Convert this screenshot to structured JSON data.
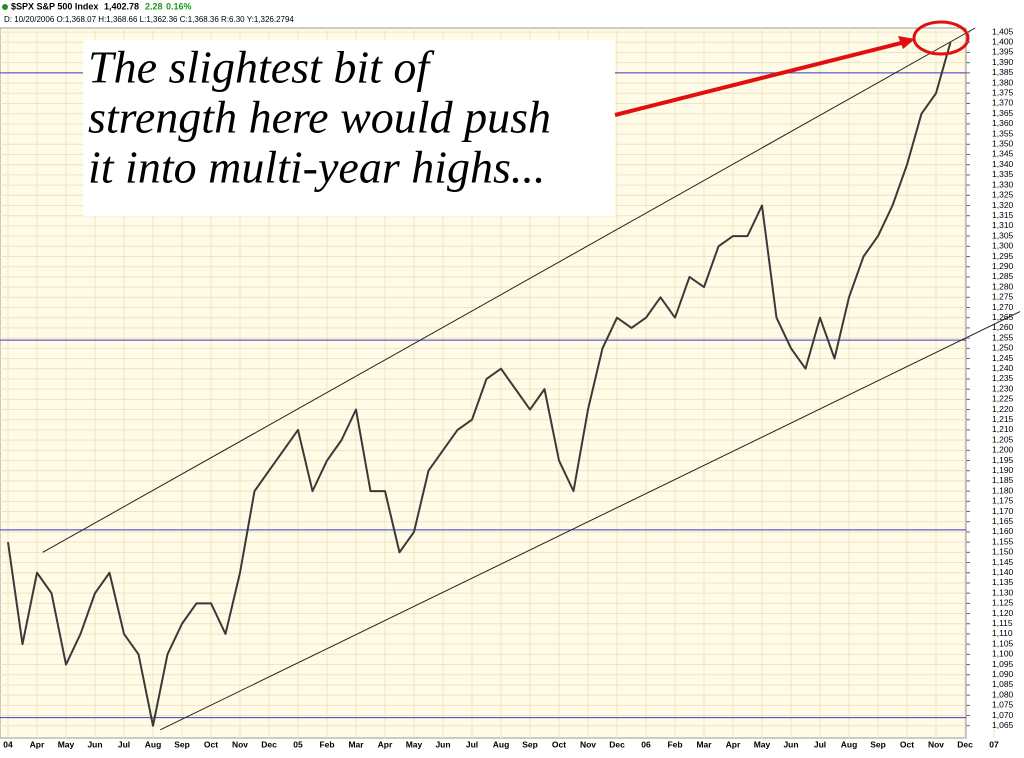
{
  "chart_data": {
    "type": "line",
    "title": "$SPX S&P 500 Index",
    "last": "1,402.78",
    "change": "2.28",
    "change_pct": "0.16%",
    "info": "D: 10/20/2006 O:1,368.07 H:1,368.66 L:1,362.36 C:1,368.36 R:6.30 Y:1,326.2794",
    "annotation": [
      "The slightest bit of",
      "strength here would push",
      "it into multi-year highs..."
    ],
    "categories": [
      "04",
      null,
      "Apr",
      null,
      "May",
      null,
      "Jun",
      null,
      "Jul",
      null,
      "Aug",
      null,
      "Sep",
      null,
      "Oct",
      null,
      "Nov",
      null,
      "Dec",
      null,
      "05",
      null,
      "Feb",
      null,
      "Mar",
      null,
      "Apr",
      null,
      "May",
      null,
      "Jun",
      null,
      "Jul",
      null,
      "Aug",
      null,
      "Sep",
      null,
      "Oct",
      null,
      "Nov",
      null,
      "Dec",
      null,
      "06",
      null,
      "Feb",
      null,
      "Mar",
      null,
      "Apr",
      null,
      "May",
      null,
      "Jun",
      null,
      "Jul",
      null,
      "Aug",
      null,
      "Sep",
      null,
      "Oct",
      null,
      "Nov",
      null,
      "Dec",
      null,
      "07"
    ],
    "series": [
      {
        "name": "$SPX",
        "color": "#3a3a3a",
        "values": [
          1155,
          1105,
          1140,
          1130,
          1095,
          1110,
          1130,
          1140,
          1110,
          1100,
          1065,
          1100,
          1115,
          1125,
          1125,
          1110,
          1140,
          1180,
          1190,
          1200,
          1210,
          1180,
          1195,
          1205,
          1220,
          1180,
          1180,
          1150,
          1160,
          1190,
          1200,
          1210,
          1215,
          1235,
          1240,
          1230,
          1220,
          1230,
          1195,
          1180,
          1220,
          1250,
          1265,
          1260,
          1265,
          1275,
          1265,
          1285,
          1280,
          1300,
          1305,
          1305,
          1320,
          1265,
          1250,
          1240,
          1265,
          1245,
          1275,
          1295,
          1305,
          1320,
          1340,
          1365,
          1375,
          1400,
          null,
          null,
          null
        ]
      }
    ],
    "hlines": [
      1385,
      1254,
      1161,
      1069
    ],
    "hline_color": "#3a3ac8",
    "trendlines": [
      {
        "x": [
          2.4,
          66.7
        ],
        "y": [
          1150,
          1407
        ]
      },
      {
        "x": [
          10.5,
          69.8
        ],
        "y": [
          1063,
          1268
        ]
      }
    ],
    "ylim": [
      1059,
      1407
    ],
    "yticks": [
      {
        "value": 1065,
        "label": "1,065"
      },
      {
        "value": 1070,
        "label": "1,070"
      },
      {
        "value": 1075,
        "label": "1,075"
      },
      {
        "value": 1080,
        "label": "1,080"
      },
      {
        "value": 1085,
        "label": "1,085"
      },
      {
        "value": 1090,
        "label": "1,090"
      },
      {
        "value": 1095,
        "label": "1,095"
      },
      {
        "value": 1100,
        "label": "1,100"
      },
      {
        "value": 1105,
        "label": "1,105"
      },
      {
        "value": 1110,
        "label": "1,110"
      },
      {
        "value": 1115,
        "label": "1,115"
      },
      {
        "value": 1120,
        "label": "1,120"
      },
      {
        "value": 1125,
        "label": "1,125"
      },
      {
        "value": 1130,
        "label": "1,130"
      },
      {
        "value": 1135,
        "label": "1,135"
      },
      {
        "value": 1140,
        "label": "1,140"
      },
      {
        "value": 1145,
        "label": "1,145"
      },
      {
        "value": 1150,
        "label": "1,150"
      },
      {
        "value": 1155,
        "label": "1,155"
      },
      {
        "value": 1160,
        "label": "1,160"
      },
      {
        "value": 1165,
        "label": "1,165"
      },
      {
        "value": 1170,
        "label": "1,170"
      },
      {
        "value": 1175,
        "label": "1,175"
      },
      {
        "value": 1180,
        "label": "1,180"
      },
      {
        "value": 1185,
        "label": "1,185"
      },
      {
        "value": 1190,
        "label": "1,190"
      },
      {
        "value": 1195,
        "label": "1,195"
      },
      {
        "value": 1200,
        "label": "1,200"
      },
      {
        "value": 1205,
        "label": "1,205"
      },
      {
        "value": 1210,
        "label": "1,210"
      },
      {
        "value": 1215,
        "label": "1,215"
      },
      {
        "value": 1220,
        "label": "1,220"
      },
      {
        "value": 1225,
        "label": "1,225"
      },
      {
        "value": 1230,
        "label": "1,230"
      },
      {
        "value": 1235,
        "label": "1,235"
      },
      {
        "value": 1240,
        "label": "1,240"
      },
      {
        "value": 1245,
        "label": "1,245"
      },
      {
        "value": 1250,
        "label": "1,250"
      },
      {
        "value": 1255,
        "label": "1,255"
      },
      {
        "value": 1260,
        "label": "1,260"
      },
      {
        "value": 1265,
        "label": "1,265"
      },
      {
        "value": 1270,
        "label": "1,270"
      },
      {
        "value": 1275,
        "label": "1,275"
      },
      {
        "value": 1280,
        "label": "1,280"
      },
      {
        "value": 1285,
        "label": "1,285"
      },
      {
        "value": 1290,
        "label": "1,290"
      },
      {
        "value": 1295,
        "label": "1,295"
      },
      {
        "value": 1300,
        "label": "1,300"
      },
      {
        "value": 1305,
        "label": "1,305"
      },
      {
        "value": 1310,
        "label": "1,310"
      },
      {
        "value": 1315,
        "label": "1,315"
      },
      {
        "value": 1320,
        "label": "1,320"
      },
      {
        "value": 1325,
        "label": "1,325"
      },
      {
        "value": 1330,
        "label": "1,330"
      },
      {
        "value": 1335,
        "label": "1,335"
      },
      {
        "value": 1340,
        "label": "1,340"
      },
      {
        "value": 1345,
        "label": "1,345"
      },
      {
        "value": 1350,
        "label": "1,350"
      },
      {
        "value": 1355,
        "label": "1,355"
      },
      {
        "value": 1360,
        "label": "1,360"
      },
      {
        "value": 1365,
        "label": "1,365"
      },
      {
        "value": 1370,
        "label": "1,370"
      },
      {
        "value": 1375,
        "label": "1,375"
      },
      {
        "value": 1380,
        "label": "1,380"
      },
      {
        "value": 1385,
        "label": "1,385"
      },
      {
        "value": 1390,
        "label": "1,390"
      },
      {
        "value": 1395,
        "label": "1,395"
      },
      {
        "value": 1400,
        "label": "1,400"
      },
      {
        "value": 1405,
        "label": "1,405"
      }
    ],
    "grid": true
  }
}
